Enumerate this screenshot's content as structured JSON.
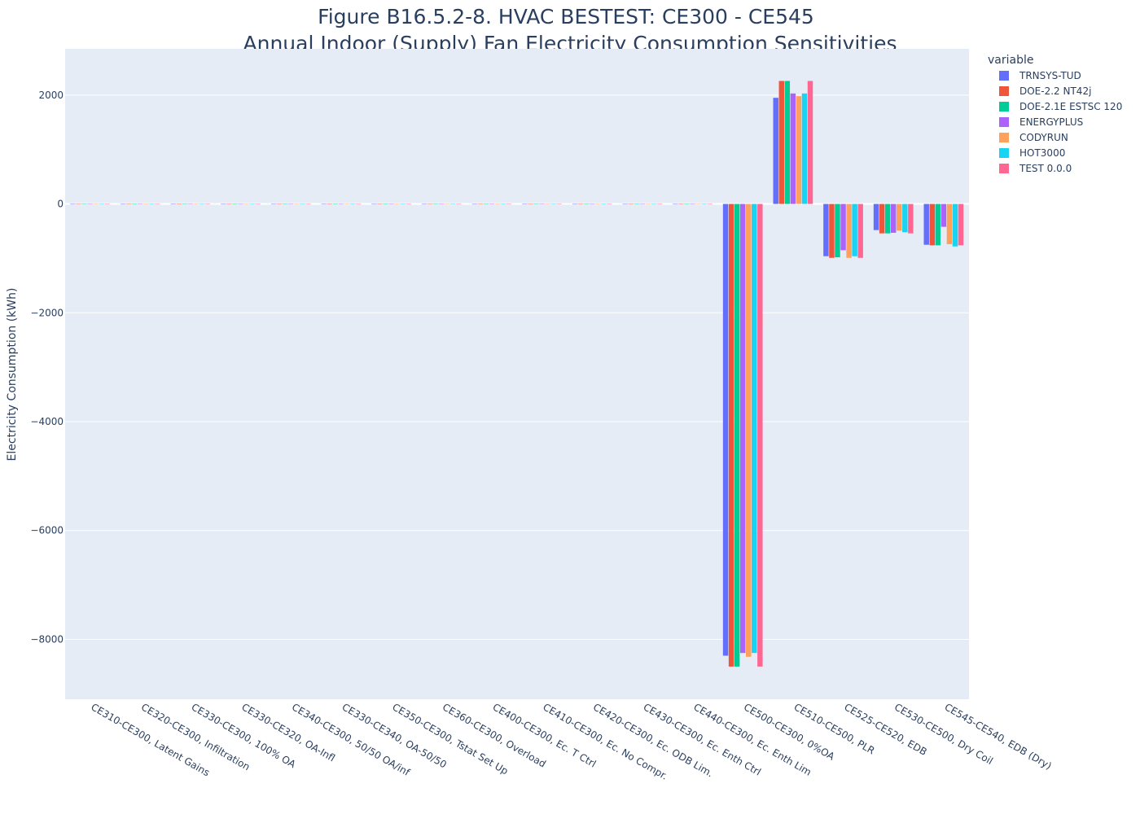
{
  "chart_data": {
    "type": "bar",
    "title_line1": "Figure B16.5.2-8. HVAC BESTEST: CE300 - CE545",
    "title_line2": "Annual Indoor (Supply) Fan Electricity Consumption Sensitivities",
    "ylabel": "Electricity Consumption (kWh)",
    "xlabel": "",
    "ylim": [
      -9100,
      2850
    ],
    "yticks": [
      2000,
      0,
      -2000,
      -4000,
      -6000,
      -8000
    ],
    "ytick_labels": [
      "2000",
      "0",
      "−2000",
      "−4000",
      "−6000",
      "−8000"
    ],
    "legend_title": "variable",
    "legend_position": "top-right, outside plot",
    "grid": true,
    "colors": {
      "plot_bg": "#e5ecf6",
      "grid": "#ffffff",
      "text": "#2a3f5f"
    },
    "categories": [
      "CE310-CE300, Latent Gains",
      "CE320-CE300, Infiltration",
      "CE330-CE300, 100% OA",
      "CE330-CE320, OA-Infl",
      "CE340-CE300, 50/50 OA/inf",
      "CE330-CE340, OA-50/50",
      "CE350-CE300, Tstat Set Up",
      "CE360-CE300, Overload",
      "CE400-CE300, Ec. T Ctrl",
      "CE410-CE300, Ec. No Compr.",
      "CE420-CE300, Ec. ODB Lim.",
      "CE430-CE300, Ec. Enth Ctrl",
      "CE440-CE300, Ec. Enth Lim",
      "CE500-CE300, 0%OA",
      "CE510-CE500, PLR",
      "CE525-CE520, EDB",
      "CE530-CE500, Dry Coil",
      "CE545-CE540, EDB (Dry)"
    ],
    "series": [
      {
        "name": "TRNSYS-TUD",
        "color": "#636efa",
        "values": [
          0,
          0,
          0,
          0,
          0,
          0,
          0,
          0,
          0,
          0,
          0,
          0,
          0,
          -8300,
          1950,
          -960,
          -480,
          -750
        ]
      },
      {
        "name": "DOE-2.2 NT42j",
        "color": "#ef553b",
        "values": [
          0,
          0,
          0,
          0,
          0,
          0,
          0,
          0,
          0,
          0,
          0,
          0,
          0,
          -8500,
          2260,
          -990,
          -540,
          -760
        ]
      },
      {
        "name": "DOE-2.1E ESTSC 120",
        "color": "#00cc96",
        "values": [
          0,
          0,
          0,
          0,
          0,
          0,
          0,
          0,
          0,
          0,
          0,
          0,
          0,
          -8500,
          2260,
          -980,
          -540,
          -760
        ]
      },
      {
        "name": "ENERGYPLUS",
        "color": "#ab63fa",
        "values": [
          0,
          0,
          0,
          0,
          0,
          0,
          0,
          0,
          0,
          0,
          0,
          0,
          0,
          -8250,
          2030,
          -850,
          -530,
          -420
        ]
      },
      {
        "name": "CODYRUN",
        "color": "#ffa15a",
        "values": [
          0,
          0,
          0,
          0,
          0,
          0,
          0,
          0,
          0,
          0,
          0,
          0,
          0,
          -8320,
          1980,
          -990,
          -490,
          -740
        ]
      },
      {
        "name": "HOT3000",
        "color": "#19d3f3",
        "values": [
          0,
          0,
          0,
          0,
          0,
          0,
          0,
          0,
          0,
          0,
          0,
          0,
          0,
          -8250,
          2030,
          -960,
          -520,
          -780
        ]
      },
      {
        "name": "TEST 0.0.0",
        "color": "#ff6692",
        "values": [
          0,
          0,
          0,
          0,
          0,
          0,
          0,
          0,
          0,
          0,
          0,
          0,
          0,
          -8500,
          2260,
          -990,
          -540,
          -760
        ]
      }
    ]
  }
}
